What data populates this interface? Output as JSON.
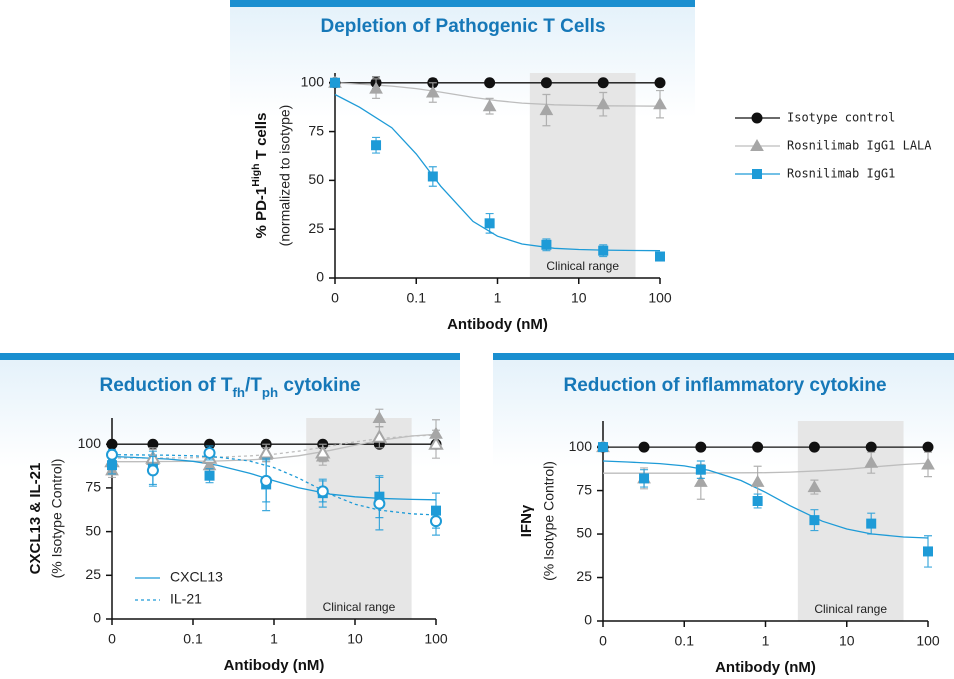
{
  "chart_data": [
    {
      "type": "line",
      "title": "Depletion of Pathogenic T Cells",
      "ylabel": [
        {
          "text": "% PD-1"
        },
        {
          "text": "High",
          "sup": true
        },
        {
          "text": " T cells"
        }
      ],
      "ylabel_note": "(normalized to isotype)",
      "xlabel": "Antibody (nM)",
      "xscale": "log",
      "xlim": [
        0,
        100
      ],
      "xticks": [
        0,
        0.1,
        1,
        10,
        100
      ],
      "ylim": [
        0,
        105
      ],
      "yticks": [
        0,
        25,
        50,
        75,
        100
      ],
      "x": [
        0,
        0.032,
        0.16,
        0.8,
        4,
        20,
        100
      ],
      "fit_x": [
        0,
        0.02,
        0.05,
        0.1,
        0.2,
        0.5,
        1,
        2,
        5,
        10,
        20,
        50,
        100
      ],
      "shaded_range": [
        2.5,
        50
      ],
      "shaded_label": "Clinical range",
      "legend": "right",
      "series": [
        {
          "name": "Isotype control",
          "color": "#111111",
          "marker": "circle",
          "values": [
            100,
            100,
            100,
            100,
            100,
            100,
            100
          ],
          "errors": [
            2,
            3,
            2,
            1,
            1,
            1,
            1
          ]
        },
        {
          "name": "Rosnilimab IgG1 LALA",
          "color": "#a6a6a6",
          "marker": "triangle",
          "values": [
            100,
            97,
            95,
            88,
            86,
            89,
            89
          ],
          "errors": [
            2,
            5,
            5,
            4,
            8,
            6,
            7
          ],
          "fit": [
            100,
            99.3,
            98.3,
            97,
            95.2,
            92.5,
            90.8,
            89.6,
            88.7,
            88.4,
            88.2,
            88.1,
            88
          ]
        },
        {
          "name": "Rosnilimab IgG1",
          "color": "#1e9bd7",
          "marker": "square",
          "values": [
            100,
            68,
            52,
            28,
            17,
            14,
            11
          ],
          "errors": [
            1,
            4,
            5,
            5,
            3,
            3,
            2
          ],
          "fit": [
            94,
            87.5,
            77,
            63.5,
            47,
            29,
            21.4,
            17.4,
            15.2,
            14.6,
            14.3,
            14.1,
            14
          ]
        }
      ]
    },
    {
      "type": "line",
      "title": [
        {
          "text": "Reduction of T"
        },
        {
          "text": "fh",
          "sub": true
        },
        {
          "text": "/T"
        },
        {
          "text": "ph",
          "sub": true
        },
        {
          "text": " cytokine"
        }
      ],
      "ylabel": "CXCL13 & IL-21",
      "ylabel_note": "(% Isotype Control)",
      "xlabel": "Antibody (nM)",
      "xscale": "log",
      "xlim": [
        0,
        100
      ],
      "xticks": [
        0,
        0.1,
        1,
        10,
        100
      ],
      "ylim": [
        0,
        115
      ],
      "yticks": [
        0,
        25,
        50,
        75,
        100
      ],
      "x": [
        0,
        0.032,
        0.16,
        0.8,
        4,
        20,
        100
      ],
      "fit_x": [
        0,
        0.02,
        0.05,
        0.1,
        0.2,
        0.5,
        1,
        2,
        5,
        10,
        20,
        50,
        100
      ],
      "shaded_range": [
        2.5,
        50
      ],
      "shaded_label": "Clinical range",
      "legend_color": "#1e9bd7",
      "legend_items": [
        {
          "label": "CXCL13"
        },
        {
          "label": "IL-21",
          "dashed": true
        }
      ],
      "series": [
        {
          "color": "#111111",
          "marker": "circle",
          "values": [
            100,
            100,
            100,
            100,
            100,
            100,
            100
          ],
          "errors": [
            1,
            1,
            1,
            1,
            1,
            1,
            1
          ]
        },
        {
          "color": "#a6a6a6",
          "marker": "triangle",
          "values": [
            85,
            91,
            88,
            94,
            93,
            115,
            106
          ],
          "errors": [
            4,
            6,
            5,
            4,
            5,
            5,
            8
          ],
          "fit": [
            90,
            90,
            90.1,
            90.2,
            90.4,
            91,
            91.9,
            93.4,
            96.5,
            99.4,
            102.1,
            104.7,
            105.7
          ]
        },
        {
          "color": "#a6a6a6",
          "marker": "triangle",
          "open": true,
          "dashed": true,
          "values": [
            90,
            92,
            92,
            95,
            95,
            104,
            100
          ],
          "errors": [
            5,
            6,
            5,
            5,
            5,
            6,
            8
          ],
          "fit": [
            92,
            92.1,
            92.1,
            92.3,
            92.5,
            93.3,
            94.3,
            96,
            99,
            101.3,
            103.2,
            104.7,
            105.3
          ]
        },
        {
          "color": "#1e9bd7",
          "marker": "square",
          "values": [
            88,
            86,
            82,
            77,
            72,
            70,
            62
          ],
          "errors": [
            5,
            10,
            4,
            15,
            8,
            12,
            10
          ],
          "fit": [
            93,
            92.4,
            91.5,
            90.2,
            88,
            83.4,
            79.1,
            75.1,
            71.4,
            69.9,
            69,
            68.4,
            68.2
          ]
        },
        {
          "color": "#1e9bd7",
          "marker": "circle",
          "open": true,
          "dashed": true,
          "values": [
            94,
            85,
            95,
            79,
            73,
            66,
            56
          ],
          "errors": [
            3,
            8,
            4,
            12,
            6,
            15,
            8
          ],
          "fit": [
            94,
            93.9,
            93.7,
            93.4,
            92.7,
            90.4,
            86.6,
            80.7,
            71.3,
            65.7,
            62.3,
            60.2,
            59.5
          ]
        }
      ]
    },
    {
      "type": "line",
      "title": "Reduction of inflammatory cytokine",
      "ylabel": "IFNγ",
      "ylabel_note": "(% Isotype Control)",
      "xlabel": "Antibody (nM)",
      "xscale": "log",
      "xlim": [
        0,
        100
      ],
      "xticks": [
        0,
        0.1,
        1,
        10,
        100
      ],
      "ylim": [
        0,
        115
      ],
      "yticks": [
        0,
        25,
        50,
        75,
        100
      ],
      "x": [
        0,
        0.032,
        0.16,
        0.8,
        4,
        20,
        100
      ],
      "fit_x": [
        0,
        0.02,
        0.05,
        0.1,
        0.2,
        0.5,
        1,
        2,
        5,
        10,
        20,
        50,
        100
      ],
      "shaded_range": [
        2.5,
        50
      ],
      "shaded_label": "Clinical range",
      "series": [
        {
          "color": "#111111",
          "marker": "circle",
          "values": [
            100,
            100,
            100,
            100,
            100,
            100,
            100
          ],
          "errors": [
            1,
            1,
            1,
            1,
            1,
            1,
            1
          ]
        },
        {
          "color": "#a6a6a6",
          "marker": "triangle",
          "values": [
            100,
            82,
            80,
            80,
            77,
            91,
            90
          ],
          "errors": [
            2,
            6,
            10,
            9,
            4,
            6,
            7
          ],
          "fit": [
            85,
            85,
            85,
            85,
            85.1,
            85.2,
            85.3,
            85.6,
            86.4,
            87.3,
            88.5,
            90,
            90.8
          ]
        },
        {
          "color": "#1e9bd7",
          "marker": "square",
          "values": [
            100,
            82,
            87,
            69,
            58,
            56,
            40
          ],
          "errors": [
            2,
            5,
            5,
            4,
            6,
            6,
            9
          ],
          "fit": [
            92,
            91.4,
            90.5,
            89.2,
            86.7,
            80.8,
            74,
            66.3,
            57.4,
            52.9,
            50.1,
            48.3,
            47.7
          ]
        }
      ]
    }
  ]
}
